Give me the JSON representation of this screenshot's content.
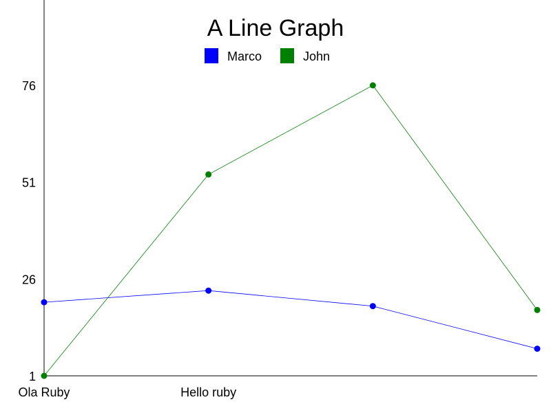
{
  "chart_data": {
    "type": "line",
    "title": "A Line Graph",
    "categories": [
      "Ola Ruby",
      "Hello ruby",
      "",
      ""
    ],
    "yticks": [
      1,
      26,
      51,
      76
    ],
    "ylim": [
      1,
      76
    ],
    "grid": false,
    "legend_position": "top-center",
    "series": [
      {
        "name": "Marco",
        "color": "#0000ff",
        "values": [
          20,
          23,
          19,
          8
        ]
      },
      {
        "name": "John",
        "color": "#008000",
        "values": [
          1,
          53,
          76,
          18
        ]
      }
    ]
  }
}
